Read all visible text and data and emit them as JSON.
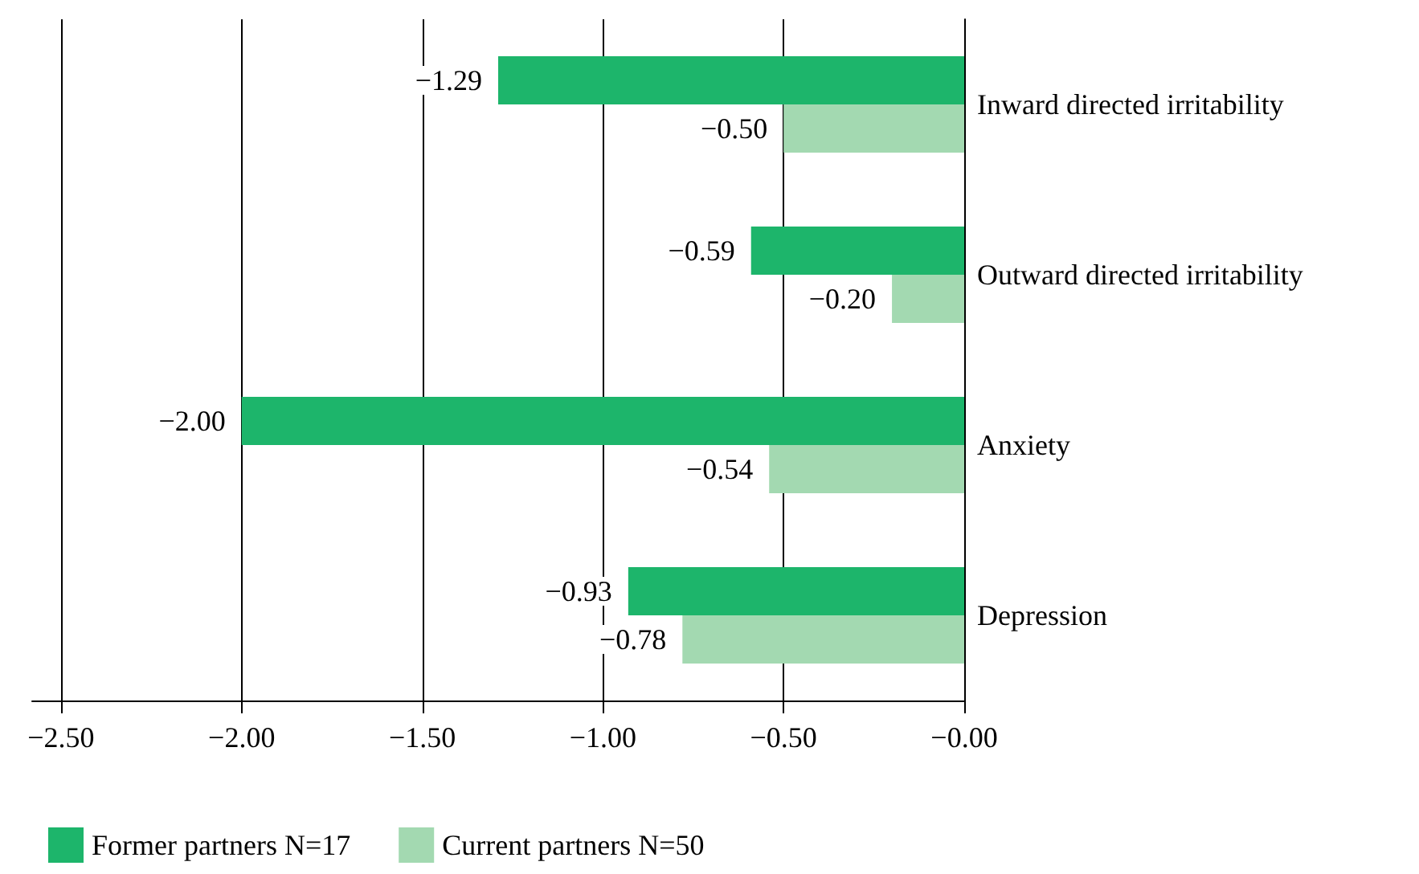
{
  "chart_data": {
    "type": "bar",
    "orientation": "horizontal",
    "categories": [
      "Inward directed irritability",
      "Outward directed irritability",
      "Anxiety",
      "Depression"
    ],
    "series": [
      {
        "name": "Former partners N=17",
        "color": "#1db56b",
        "values": [
          -1.29,
          -0.59,
          -2.0,
          -0.93
        ],
        "value_labels": [
          "−1.29",
          "−0.59",
          "−2.00",
          "−0.93"
        ]
      },
      {
        "name": "Current partners N=50",
        "color": "#a3d9b1",
        "values": [
          -0.5,
          -0.2,
          -0.54,
          -0.78
        ],
        "value_labels": [
          "−0.50",
          "−0.20",
          "−0.54",
          "−0.78"
        ]
      }
    ],
    "xlim": [
      -2.58,
      0
    ],
    "xticks": [
      {
        "value": -2.5,
        "label": "−2.50"
      },
      {
        "value": -2,
        "label": "−2.00"
      },
      {
        "value": -1.5,
        "label": "−1.50"
      },
      {
        "value": -1,
        "label": "−1.00"
      },
      {
        "value": -0.5,
        "label": "−0.50"
      },
      {
        "value": 0,
        "label": "−0.00"
      }
    ],
    "grid": "x",
    "legend": "bottom left"
  }
}
